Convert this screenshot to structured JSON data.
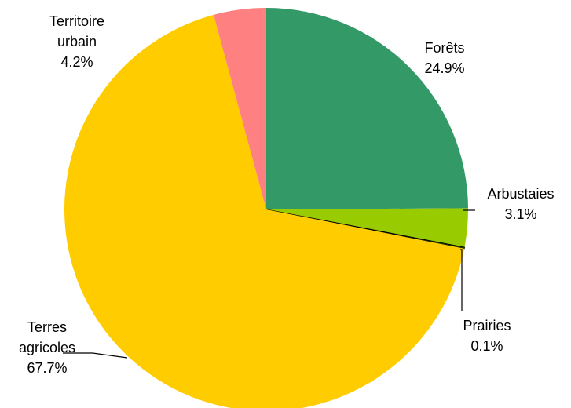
{
  "chart_data": {
    "type": "pie",
    "categories": [
      "Forêts",
      "Arbustaies",
      "Prairies",
      "Terres agricoles",
      "Territoire urbain"
    ],
    "values": [
      24.9,
      3.1,
      0.1,
      67.7,
      4.2
    ],
    "value_labels": [
      "24.9%",
      "3.1%",
      "0.1%",
      "67.7%",
      "4.2%"
    ],
    "colors": [
      "#339966",
      "#99cc00",
      "#336600",
      "#ffcc00",
      "#ff8080"
    ]
  }
}
